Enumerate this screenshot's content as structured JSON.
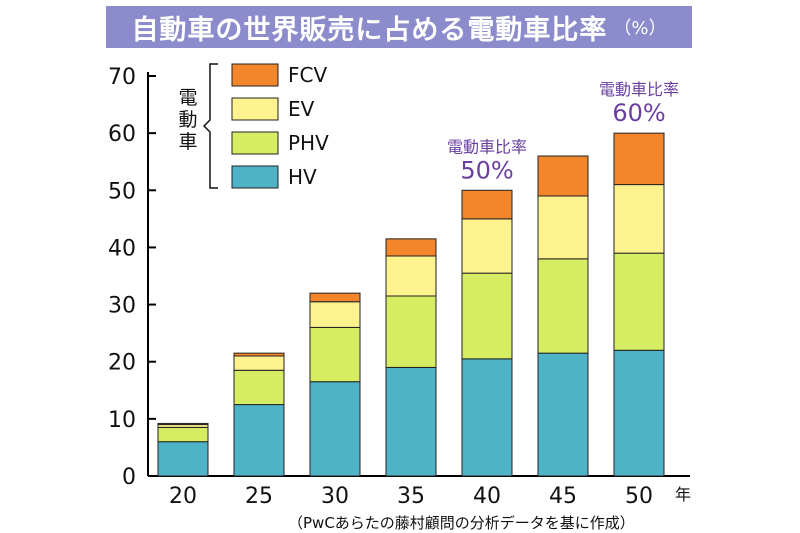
{
  "title": "自動車の世界販売に占める電動車比率",
  "title_unit": "（%）",
  "chart_data": {
    "type": "bar",
    "stacked": true,
    "categories": [
      "20",
      "25",
      "30",
      "35",
      "40",
      "45",
      "50"
    ],
    "x_unit": "年",
    "y_ticks": [
      "0",
      "10",
      "20",
      "30",
      "40",
      "50",
      "60",
      "70"
    ],
    "ylim": [
      0,
      70
    ],
    "series": [
      {
        "name": "HV",
        "color": "#4fb3c8",
        "values": [
          6,
          12.5,
          16.5,
          19,
          20.5,
          21.5,
          22
        ]
      },
      {
        "name": "PHV",
        "color": "#d6ec63",
        "values": [
          2.5,
          6,
          9.5,
          12.5,
          15,
          16.5,
          17
        ]
      },
      {
        "name": "EV",
        "color": "#fdf28e",
        "values": [
          0.5,
          2.5,
          4.5,
          7,
          9.5,
          11,
          12
        ]
      },
      {
        "name": "FCV",
        "color": "#f3862a",
        "values": [
          0.2,
          0.5,
          1.5,
          3,
          5,
          7,
          9
        ]
      }
    ],
    "legend_group_label": "電動車",
    "legend_position": "top-left",
    "grid": false,
    "annotations": [
      {
        "category": "40",
        "label": "電動車比率",
        "value": "50%",
        "color": "#6a3fa0"
      },
      {
        "category": "50",
        "label": "電動車比率",
        "value": "60%",
        "color": "#6a3fa0"
      }
    ]
  },
  "source": "（PwCあらたの藤村顧問の分析データを基に作成）"
}
